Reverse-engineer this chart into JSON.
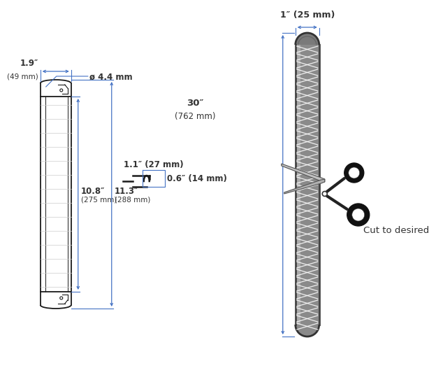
{
  "bg_color": "#ffffff",
  "line_color": "#1a1a1a",
  "dim_color": "#4472c4",
  "dim_text_color": "#333333",
  "dims": {
    "width_19": {
      "label": "1.9″",
      "sublabel": "(49 mm)"
    },
    "dia_44": {
      "label": "ø 4.4 mm"
    },
    "height_108": {
      "label": "10.8″",
      "sublabel": "(275 mm)"
    },
    "height_113": {
      "label": "11.3″",
      "sublabel": "(288 mm)"
    },
    "clip_w": {
      "label": "1.1″ (27 mm)"
    },
    "clip_h": {
      "label": "0.6″ (14 mm)"
    },
    "tube_len": {
      "label": "30″",
      "sublabel": "(762 mm)"
    },
    "tube_w": {
      "label": "1″ (25 mm)"
    }
  },
  "cut_text": "Cut to desired"
}
